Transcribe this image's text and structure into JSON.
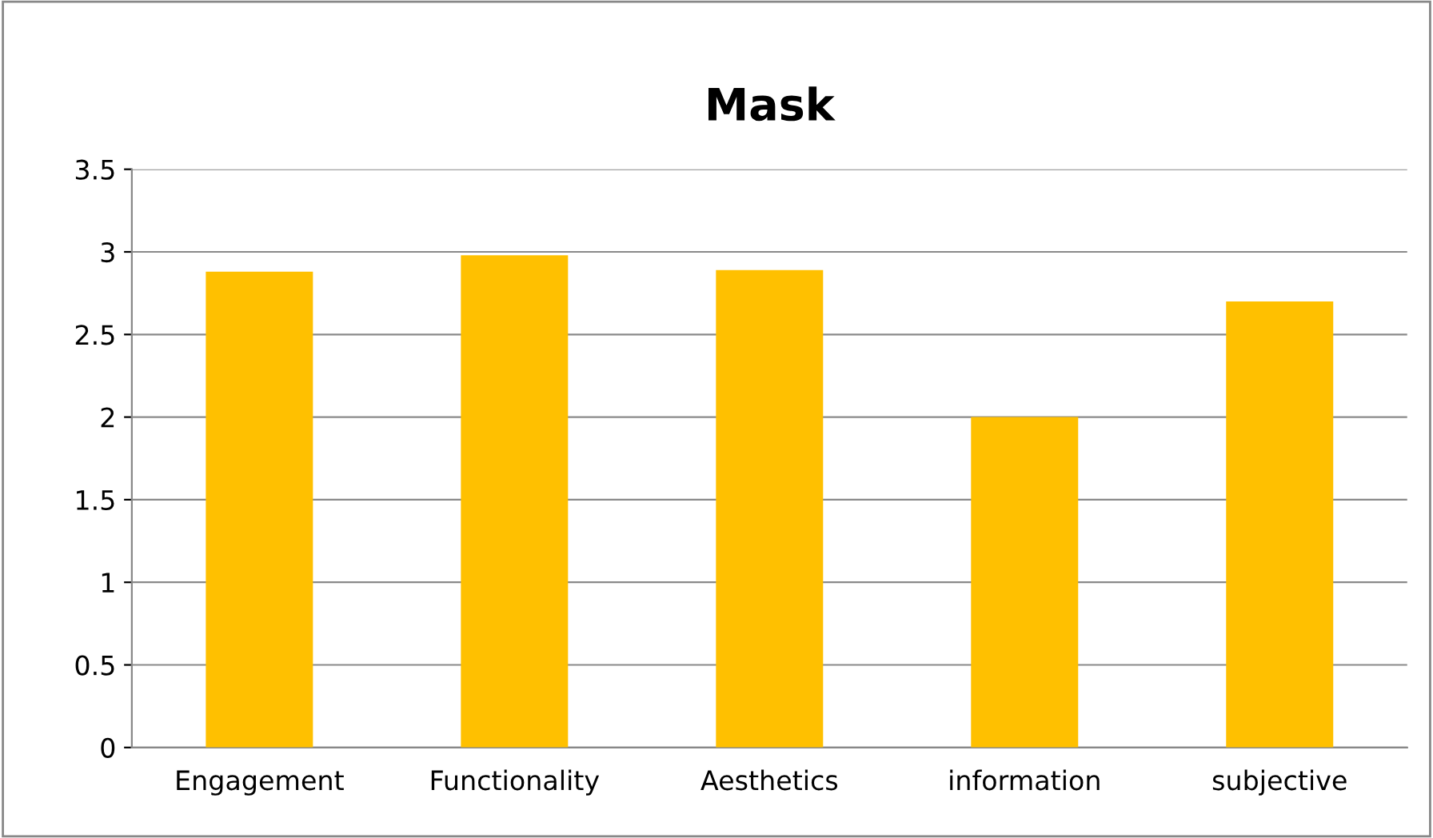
{
  "chart_data": {
    "type": "bar",
    "title": "Mask",
    "categories": [
      "Engagement",
      "Functionality",
      "Aesthetics",
      "information",
      "subjective"
    ],
    "values": [
      2.88,
      2.98,
      2.89,
      2.0,
      2.7
    ],
    "color": "#ffc000",
    "ylim": [
      0,
      3.5
    ],
    "yticks": [
      0,
      0.5,
      1,
      1.5,
      2,
      2.5,
      3,
      3.5
    ],
    "grid": "y",
    "legend": false
  }
}
